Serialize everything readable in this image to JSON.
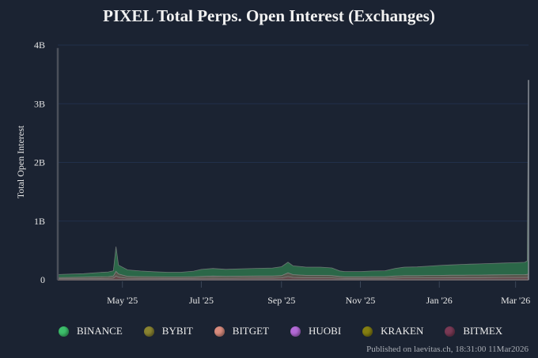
{
  "chart_data": {
    "type": "area",
    "stacked": true,
    "title": "PIXEL Total Perps. Open Interest (Exchanges)",
    "xlabel": "",
    "ylabel": "Total Open Interest",
    "ylim": [
      0,
      4000000000
    ],
    "yticks": [
      {
        "value": 0,
        "label": "0"
      },
      {
        "value": 1000000000,
        "label": "1B"
      },
      {
        "value": 2000000000,
        "label": "2B"
      },
      {
        "value": 3000000000,
        "label": "3B"
      },
      {
        "value": 4000000000,
        "label": "4B"
      }
    ],
    "xrange": [
      "2025-03-12",
      "2026-03-11"
    ],
    "xticks": [
      {
        "date": "2025-05-01",
        "label": "May '25"
      },
      {
        "date": "2025-07-01",
        "label": "Jul '25"
      },
      {
        "date": "2025-09-01",
        "label": "Sep '25"
      },
      {
        "date": "2025-11-01",
        "label": "Nov '25"
      },
      {
        "date": "2026-01-01",
        "label": "Jan '26"
      },
      {
        "date": "2026-03-01",
        "label": "Mar '26"
      }
    ],
    "grid": true,
    "legend_position": "bottom-left",
    "x": [
      "2025-03-12",
      "2025-03-20",
      "2025-04-01",
      "2025-04-10",
      "2025-04-20",
      "2025-04-24",
      "2025-04-26",
      "2025-04-28",
      "2025-05-05",
      "2025-05-15",
      "2025-05-25",
      "2025-06-05",
      "2025-06-15",
      "2025-06-25",
      "2025-07-01",
      "2025-07-10",
      "2025-07-20",
      "2025-08-01",
      "2025-08-15",
      "2025-08-25",
      "2025-09-01",
      "2025-09-06",
      "2025-09-10",
      "2025-09-20",
      "2025-10-01",
      "2025-10-10",
      "2025-10-16",
      "2025-10-20",
      "2025-11-01",
      "2025-11-10",
      "2025-11-20",
      "2025-11-28",
      "2025-12-05",
      "2025-12-15",
      "2025-12-25",
      "2026-01-01",
      "2026-01-10",
      "2026-01-20",
      "2026-01-25",
      "2026-02-01",
      "2026-02-10",
      "2026-02-20",
      "2026-03-01",
      "2026-03-08",
      "2026-03-10",
      "2026-03-11"
    ],
    "series": [
      {
        "name": "BITMEX",
        "color": "#7a3a55",
        "values": [
          2,
          2,
          2,
          2,
          2,
          2,
          2,
          2,
          2,
          2,
          2,
          2,
          2,
          2,
          2,
          2,
          2,
          2,
          2,
          2,
          2,
          2,
          2,
          2,
          2,
          2,
          2,
          2,
          2,
          2,
          2,
          2,
          2,
          2,
          2,
          2,
          2,
          2,
          2,
          2,
          2,
          2,
          2,
          2,
          2,
          2
        ]
      },
      {
        "name": "KRAKEN",
        "color": "#8a8a1e",
        "values": [
          1,
          1,
          1,
          1,
          1,
          1,
          1,
          1,
          1,
          1,
          1,
          1,
          1,
          1,
          1,
          1,
          1,
          1,
          1,
          1,
          1,
          1,
          1,
          1,
          1,
          1,
          1,
          1,
          1,
          1,
          1,
          1,
          1,
          1,
          1,
          1,
          1,
          1,
          1,
          1,
          1,
          1,
          1,
          1,
          1,
          1
        ]
      },
      {
        "name": "HUOBI",
        "color": "#b36ad6",
        "values": [
          1,
          1,
          1,
          1,
          1,
          1,
          1,
          1,
          1,
          1,
          1,
          1,
          1,
          1,
          1,
          1,
          1,
          1,
          1,
          1,
          1,
          1,
          1,
          1,
          1,
          1,
          1,
          1,
          1,
          1,
          1,
          1,
          1,
          1,
          1,
          1,
          1,
          1,
          1,
          1,
          1,
          1,
          1,
          1,
          1,
          1
        ]
      },
      {
        "name": "BITGET",
        "color": "#d98c7e",
        "values": [
          15,
          15,
          15,
          18,
          20,
          25,
          60,
          40,
          22,
          20,
          20,
          18,
          18,
          20,
          22,
          24,
          22,
          24,
          25,
          25,
          28,
          50,
          35,
          30,
          30,
          28,
          22,
          18,
          18,
          20,
          20,
          25,
          28,
          28,
          30,
          30,
          32,
          32,
          33,
          33,
          34,
          35,
          35,
          36,
          38,
          40
        ]
      },
      {
        "name": "BYBIT",
        "color": "#8f8a3a",
        "values": [
          20,
          22,
          25,
          28,
          30,
          35,
          80,
          55,
          32,
          30,
          28,
          26,
          26,
          28,
          30,
          35,
          32,
          34,
          36,
          36,
          40,
          65,
          48,
          42,
          42,
          40,
          30,
          28,
          28,
          30,
          30,
          35,
          38,
          38,
          40,
          40,
          42,
          42,
          44,
          44,
          45,
          46,
          47,
          48,
          50,
          60
        ]
      },
      {
        "name": "BINANCE",
        "color": "#3dbf6b",
        "values": [
          50,
          55,
          60,
          70,
          80,
          90,
          420,
          150,
          110,
          95,
          85,
          80,
          80,
          95,
          120,
          130,
          120,
          125,
          130,
          135,
          150,
          180,
          150,
          140,
          140,
          130,
          95,
          90,
          90,
          95,
          100,
          130,
          145,
          150,
          160,
          170,
          175,
          185,
          185,
          190,
          195,
          200,
          205,
          210,
          230,
          3300
        ]
      }
    ],
    "first_point_spike": 3950000000,
    "units": "USD"
  },
  "legend": [
    {
      "label": "BINANCE",
      "color": "#3dbf6b"
    },
    {
      "label": "BYBIT",
      "color": "#8a8431"
    },
    {
      "label": "BITGET",
      "color": "#d98c7e"
    },
    {
      "label": "HUOBI",
      "color": "#b36ad6"
    },
    {
      "label": "KRAKEN",
      "color": "#857f12"
    },
    {
      "label": "BITMEX",
      "color": "#7a3a55"
    }
  ],
  "footer": "Published on laevitas.ch, 18:31:00 11Mar2026"
}
